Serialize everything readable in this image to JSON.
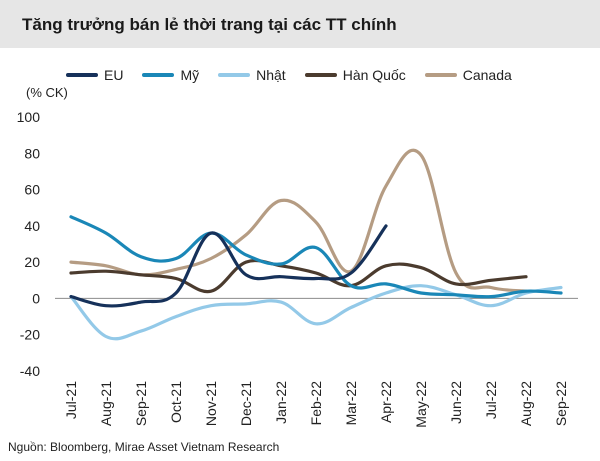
{
  "title": "Tăng trưởng bán lẻ thời trang tại các TT chính",
  "unit_label": "(% CK)",
  "source": "Nguồn: Bloomberg, Mirae Asset Vietnam Research",
  "chart_data": {
    "type": "line",
    "x": [
      "Jul-21",
      "Aug-21",
      "Sep-21",
      "Oct-21",
      "Nov-21",
      "Dec-21",
      "Jan-22",
      "Feb-22",
      "Mar-22",
      "Apr-22",
      "May-22",
      "Jun-22",
      "Jul-22",
      "Aug-22",
      "Sep-22"
    ],
    "ylim": [
      -40,
      100
    ],
    "yticks": [
      -40,
      -20,
      0,
      20,
      40,
      60,
      80,
      100
    ],
    "grid": false,
    "legend_position": "top",
    "series": [
      {
        "name": "EU",
        "color": "#16315a",
        "values": [
          1,
          -4,
          -2,
          3,
          36,
          13,
          12,
          11,
          14,
          40,
          null,
          null,
          null,
          null,
          null
        ]
      },
      {
        "name": "Mỹ",
        "color": "#1a87b7",
        "values": [
          45,
          36,
          23,
          22,
          36,
          24,
          19,
          28,
          7,
          8,
          3,
          2,
          1,
          4,
          3
        ]
      },
      {
        "name": "Nhật",
        "color": "#93c9e8",
        "values": [
          1,
          -21,
          -18,
          -10,
          -4,
          -3,
          -2,
          -14,
          -5,
          3,
          7,
          2,
          -4,
          3,
          6
        ]
      },
      {
        "name": "Hàn Quốc",
        "color": "#4b3b2e",
        "values": [
          14,
          15,
          13,
          11,
          4,
          20,
          18,
          14,
          7,
          18,
          17,
          8,
          10,
          12,
          null
        ]
      },
      {
        "name": "Canada",
        "color": "#b59c83",
        "values": [
          20,
          18,
          13,
          16,
          22,
          35,
          54,
          42,
          15,
          62,
          79,
          14,
          6,
          4,
          null
        ]
      }
    ]
  }
}
